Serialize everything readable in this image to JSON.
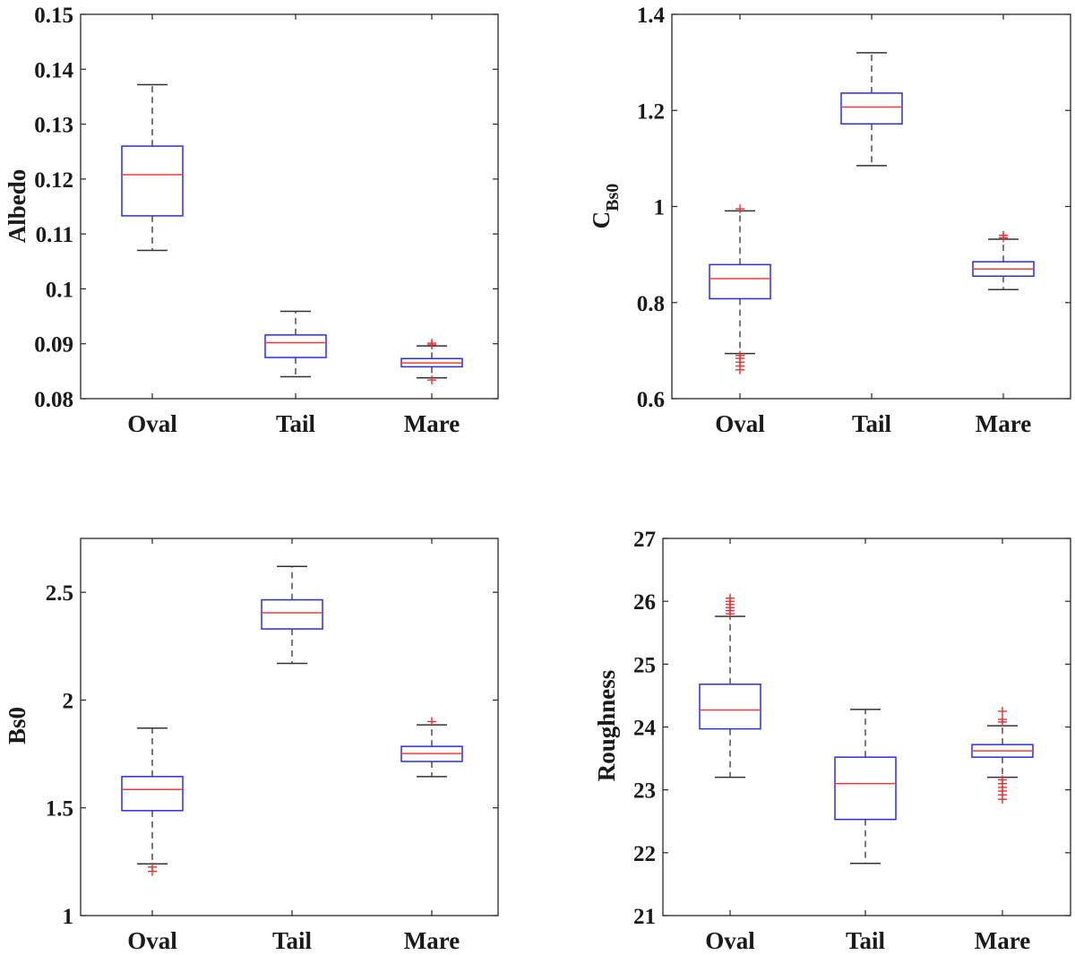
{
  "chart_data": [
    {
      "type": "box",
      "ylabel": "Albedo",
      "ylabel_sub": "",
      "categories": [
        "Oval",
        "Tail",
        "Mare"
      ],
      "ylim": [
        0.08,
        0.15
      ],
      "yticks": [
        0.08,
        0.09,
        0.1,
        0.11,
        0.12,
        0.13,
        0.14,
        0.15
      ],
      "ytick_labels": [
        "0.08",
        "0.09",
        "0.1",
        "0.11",
        "0.12",
        "0.13",
        "0.14",
        "0.15"
      ],
      "boxes": [
        {
          "whisker_low": 0.107,
          "q1": 0.1133,
          "median": 0.1208,
          "q3": 0.126,
          "whisker_high": 0.1372,
          "outliers": []
        },
        {
          "whisker_low": 0.084,
          "q1": 0.0875,
          "median": 0.0902,
          "q3": 0.0916,
          "whisker_high": 0.0959,
          "outliers": []
        },
        {
          "whisker_low": 0.0838,
          "q1": 0.0858,
          "median": 0.0865,
          "q3": 0.0873,
          "whisker_high": 0.0896,
          "outliers": [
            0.0834,
            0.0901,
            0.0898
          ]
        }
      ]
    },
    {
      "type": "box",
      "ylabel": "C",
      "ylabel_sub": "Bs0",
      "categories": [
        "Oval",
        "Tail",
        "Mare"
      ],
      "ylim": [
        0.6,
        1.4
      ],
      "yticks": [
        0.6,
        0.8,
        1.0,
        1.2,
        1.4
      ],
      "ytick_labels": [
        "0.6",
        "0.8",
        "1",
        "1.2",
        "1.4"
      ],
      "boxes": [
        {
          "whisker_low": 0.694,
          "q1": 0.808,
          "median": 0.85,
          "q3": 0.879,
          "whisker_high": 0.991,
          "outliers": [
            0.66,
            0.668,
            0.676,
            0.684,
            0.69,
            0.995
          ]
        },
        {
          "whisker_low": 1.085,
          "q1": 1.172,
          "median": 1.207,
          "q3": 1.236,
          "whisker_high": 1.32,
          "outliers": []
        },
        {
          "whisker_low": 0.827,
          "q1": 0.855,
          "median": 0.87,
          "q3": 0.885,
          "whisker_high": 0.932,
          "outliers": [
            0.935,
            0.94
          ]
        }
      ]
    },
    {
      "type": "box",
      "ylabel": "Bs0",
      "ylabel_sub": "",
      "categories": [
        "Oval",
        "Tail",
        "Mare"
      ],
      "ylim": [
        1.0,
        2.75
      ],
      "yticks": [
        1.0,
        1.5,
        2.0,
        2.5
      ],
      "ytick_labels": [
        "1",
        "1.5",
        "2",
        "2.5"
      ],
      "boxes": [
        {
          "whisker_low": 1.24,
          "q1": 1.487,
          "median": 1.585,
          "q3": 1.645,
          "whisker_high": 1.87,
          "outliers": [
            1.205,
            1.225
          ]
        },
        {
          "whisker_low": 2.17,
          "q1": 2.33,
          "median": 2.405,
          "q3": 2.465,
          "whisker_high": 2.62,
          "outliers": []
        },
        {
          "whisker_low": 1.645,
          "q1": 1.715,
          "median": 1.752,
          "q3": 1.785,
          "whisker_high": 1.885,
          "outliers": [
            1.9
          ]
        }
      ]
    },
    {
      "type": "box",
      "ylabel": "Roughness",
      "ylabel_sub": "",
      "categories": [
        "Oval",
        "Tail",
        "Mare"
      ],
      "ylim": [
        21,
        27
      ],
      "yticks": [
        21,
        22,
        23,
        24,
        25,
        26,
        27
      ],
      "ytick_labels": [
        "21",
        "22",
        "23",
        "24",
        "25",
        "26",
        "27"
      ],
      "boxes": [
        {
          "whisker_low": 23.2,
          "q1": 23.97,
          "median": 24.27,
          "q3": 24.68,
          "whisker_high": 25.76,
          "outliers": [
            25.8,
            25.85,
            25.9,
            25.95,
            26.0,
            26.05
          ]
        },
        {
          "whisker_low": 21.83,
          "q1": 22.53,
          "median": 23.1,
          "q3": 23.52,
          "whisker_high": 24.28,
          "outliers": []
        },
        {
          "whisker_low": 23.2,
          "q1": 23.52,
          "median": 23.62,
          "q3": 23.72,
          "whisker_high": 24.02,
          "outliers": [
            22.85,
            22.92,
            22.98,
            23.04,
            23.1,
            23.16,
            24.08,
            24.12,
            24.25
          ]
        }
      ]
    }
  ]
}
